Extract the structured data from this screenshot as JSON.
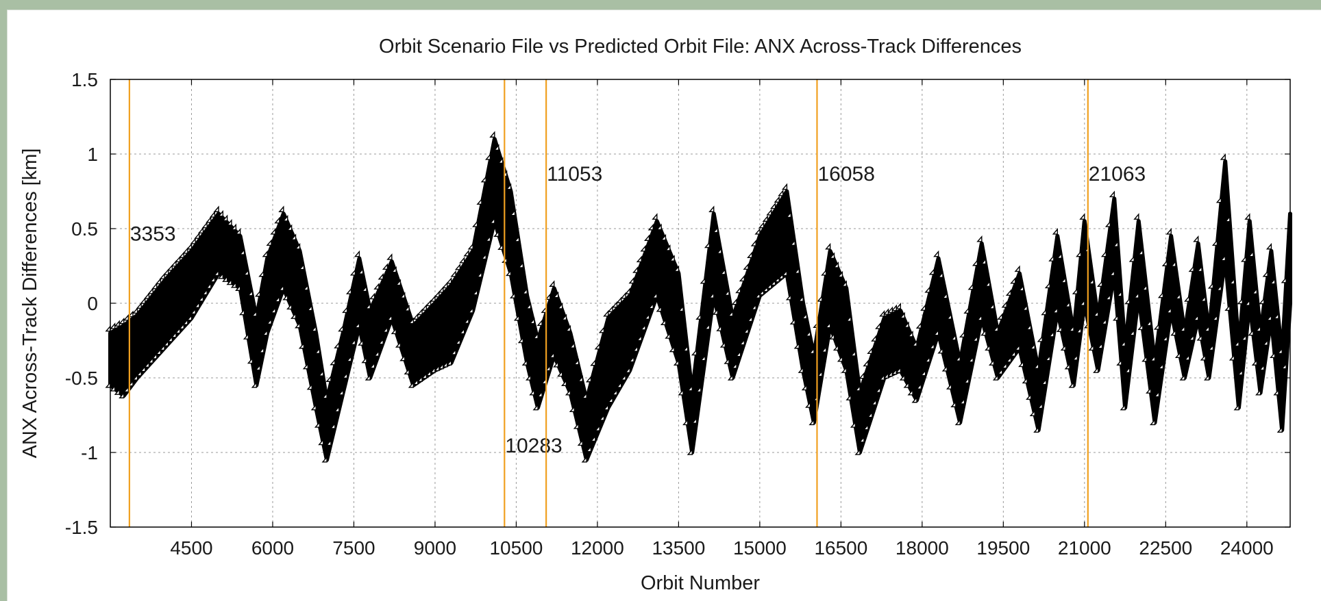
{
  "chart_data": {
    "type": "scatter",
    "title": "Orbit Scenario File vs Predicted Orbit File: ANX Across-Track Differences",
    "xlabel": "Orbit Number",
    "ylabel": "ANX Across-Track Differences [km]",
    "xlim": [
      3000,
      24800
    ],
    "ylim": [
      -1.5,
      1.5
    ],
    "xticks": [
      4500,
      6000,
      7500,
      9000,
      10500,
      12000,
      13500,
      15000,
      16500,
      18000,
      19500,
      21000,
      22500,
      24000
    ],
    "yticks": [
      1.5,
      1,
      0.5,
      0,
      -0.5,
      -1,
      -1.5
    ],
    "grid": true,
    "marker": "open-triangle",
    "marker_color": "#000000",
    "vline_color": "#f0a020",
    "vertical_lines": [
      {
        "x": 3353,
        "label": "3353",
        "label_y": 0.42
      },
      {
        "x": 10283,
        "label": "10283",
        "label_y": -1.0
      },
      {
        "x": 11053,
        "label": "11053",
        "label_y": 0.82
      },
      {
        "x": 16058,
        "label": "16058",
        "label_y": 0.82
      },
      {
        "x": 21063,
        "label": "21063",
        "label_y": 0.82
      }
    ],
    "envelope": [
      {
        "x": 3000,
        "hi": -0.2,
        "lo": -0.55
      },
      {
        "x": 3250,
        "hi": -0.15,
        "lo": -0.62
      },
      {
        "x": 3500,
        "hi": -0.08,
        "lo": -0.5
      },
      {
        "x": 4000,
        "hi": 0.15,
        "lo": -0.3
      },
      {
        "x": 4500,
        "hi": 0.35,
        "lo": -0.1
      },
      {
        "x": 5000,
        "hi": 0.6,
        "lo": 0.2
      },
      {
        "x": 5400,
        "hi": 0.45,
        "lo": 0.1
      },
      {
        "x": 5700,
        "hi": -0.1,
        "lo": -0.55
      },
      {
        "x": 5900,
        "hi": 0.3,
        "lo": -0.2
      },
      {
        "x": 6200,
        "hi": 0.6,
        "lo": 0.1
      },
      {
        "x": 6500,
        "hi": 0.35,
        "lo": -0.15
      },
      {
        "x": 6800,
        "hi": -0.2,
        "lo": -0.7
      },
      {
        "x": 7000,
        "hi": -0.65,
        "lo": -1.05
      },
      {
        "x": 7300,
        "hi": -0.2,
        "lo": -0.6
      },
      {
        "x": 7600,
        "hi": 0.3,
        "lo": -0.15
      },
      {
        "x": 7800,
        "hi": -0.05,
        "lo": -0.5
      },
      {
        "x": 8200,
        "hi": 0.28,
        "lo": -0.1
      },
      {
        "x": 8600,
        "hi": -0.15,
        "lo": -0.55
      },
      {
        "x": 9000,
        "hi": 0.0,
        "lo": -0.45
      },
      {
        "x": 9300,
        "hi": 0.12,
        "lo": -0.4
      },
      {
        "x": 9700,
        "hi": 0.35,
        "lo": -0.05
      },
      {
        "x": 10100,
        "hi": 1.1,
        "lo": 0.55
      },
      {
        "x": 10400,
        "hi": 0.75,
        "lo": 0.2
      },
      {
        "x": 10700,
        "hi": 0.05,
        "lo": -0.4
      },
      {
        "x": 10900,
        "hi": -0.25,
        "lo": -0.7
      },
      {
        "x": 11200,
        "hi": 0.1,
        "lo": -0.35
      },
      {
        "x": 11500,
        "hi": -0.2,
        "lo": -0.6
      },
      {
        "x": 11800,
        "hi": -0.65,
        "lo": -1.05
      },
      {
        "x": 12200,
        "hi": -0.1,
        "lo": -0.7
      },
      {
        "x": 12600,
        "hi": 0.05,
        "lo": -0.45
      },
      {
        "x": 13100,
        "hi": 0.55,
        "lo": 0.05
      },
      {
        "x": 13500,
        "hi": 0.2,
        "lo": -0.4
      },
      {
        "x": 13750,
        "hi": -0.6,
        "lo": -1.0
      },
      {
        "x": 14150,
        "hi": 0.6,
        "lo": 0.05
      },
      {
        "x": 14500,
        "hi": -0.1,
        "lo": -0.5
      },
      {
        "x": 15000,
        "hi": 0.45,
        "lo": 0.05
      },
      {
        "x": 15500,
        "hi": 0.75,
        "lo": 0.2
      },
      {
        "x": 15800,
        "hi": 0.0,
        "lo": -0.45
      },
      {
        "x": 16000,
        "hi": -0.35,
        "lo": -0.8
      },
      {
        "x": 16300,
        "hi": 0.35,
        "lo": -0.15
      },
      {
        "x": 16600,
        "hi": 0.1,
        "lo": -0.45
      },
      {
        "x": 16850,
        "hi": -0.6,
        "lo": -1.0
      },
      {
        "x": 17300,
        "hi": -0.1,
        "lo": -0.5
      },
      {
        "x": 17600,
        "hi": -0.05,
        "lo": -0.45
      },
      {
        "x": 17900,
        "hi": -0.3,
        "lo": -0.65
      },
      {
        "x": 18300,
        "hi": 0.3,
        "lo": -0.2
      },
      {
        "x": 18700,
        "hi": -0.4,
        "lo": -0.8
      },
      {
        "x": 19100,
        "hi": 0.4,
        "lo": -0.1
      },
      {
        "x": 19400,
        "hi": -0.2,
        "lo": -0.5
      },
      {
        "x": 19800,
        "hi": 0.2,
        "lo": -0.3
      },
      {
        "x": 20150,
        "hi": -0.45,
        "lo": -0.85
      },
      {
        "x": 20500,
        "hi": 0.45,
        "lo": -0.05
      },
      {
        "x": 20800,
        "hi": -0.2,
        "lo": -0.55
      },
      {
        "x": 21000,
        "hi": 0.55,
        "lo": 0.0
      },
      {
        "x": 21250,
        "hi": -0.1,
        "lo": -0.45
      },
      {
        "x": 21550,
        "hi": 0.7,
        "lo": 0.2
      },
      {
        "x": 21750,
        "hi": -0.3,
        "lo": -0.7
      },
      {
        "x": 22000,
        "hi": 0.55,
        "lo": 0.05
      },
      {
        "x": 22300,
        "hi": -0.4,
        "lo": -0.8
      },
      {
        "x": 22600,
        "hi": 0.45,
        "lo": -0.05
      },
      {
        "x": 22850,
        "hi": -0.2,
        "lo": -0.5
      },
      {
        "x": 23100,
        "hi": 0.4,
        "lo": -0.1
      },
      {
        "x": 23300,
        "hi": -0.2,
        "lo": -0.5
      },
      {
        "x": 23600,
        "hi": 0.95,
        "lo": 0.3
      },
      {
        "x": 23850,
        "hi": -0.3,
        "lo": -0.7
      },
      {
        "x": 24050,
        "hi": 0.55,
        "lo": 0.0
      },
      {
        "x": 24250,
        "hi": -0.2,
        "lo": -0.6
      },
      {
        "x": 24450,
        "hi": 0.35,
        "lo": -0.1
      },
      {
        "x": 24650,
        "hi": -0.35,
        "lo": -0.85
      },
      {
        "x": 24800,
        "hi": 0.6,
        "lo": 0.0
      }
    ]
  }
}
